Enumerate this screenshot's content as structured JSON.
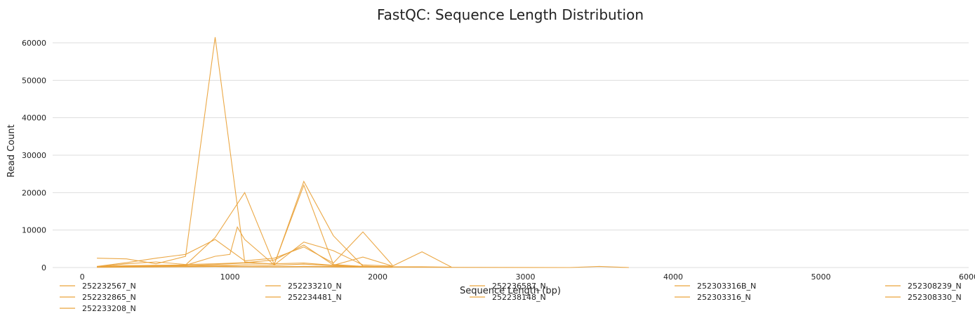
{
  "chart_data": {
    "type": "line",
    "title": "FastQC: Sequence Length Distribution",
    "xlabel": "Sequence Length (bp)",
    "ylabel": "Read Count",
    "xlim": [
      -200,
      6000
    ],
    "ylim": [
      0,
      63000
    ],
    "xticks": [
      0,
      1000,
      2000,
      3000,
      4000,
      5000,
      6000
    ],
    "yticks": [
      0,
      10000,
      20000,
      30000,
      40000,
      50000,
      60000
    ],
    "grid": "horizontal",
    "legend_position": "bottom",
    "color": "#EAA33C",
    "series": [
      {
        "name": "252232567_N",
        "x": [
          100,
          300,
          500,
          700,
          900,
          1100,
          1300,
          1500,
          1700,
          1900,
          2100
        ],
        "y": [
          2500,
          2300,
          1000,
          3000,
          61500,
          1500,
          900,
          22000,
          800,
          300,
          100
        ]
      },
      {
        "name": "252232865_N",
        "x": [
          100,
          300,
          500,
          700,
          900,
          1100,
          1300,
          1500,
          1700,
          1900,
          2100
        ],
        "y": [
          300,
          500,
          600,
          700,
          8000,
          20000,
          800,
          23000,
          8500,
          400,
          100
        ]
      },
      {
        "name": "252233208_N",
        "x": [
          100,
          300,
          500,
          700,
          900,
          1100,
          1300,
          1500,
          1700,
          1900,
          2100
        ],
        "y": [
          300,
          1300,
          2500,
          3500,
          7500,
          1800,
          2500,
          5500,
          1200,
          9500,
          600
        ]
      },
      {
        "name": "252233210_N",
        "x": [
          100,
          300,
          500,
          700,
          900,
          1000,
          1050,
          1100,
          1300,
          1500,
          1700,
          1900,
          2100
        ],
        "y": [
          200,
          400,
          500,
          600,
          3000,
          3500,
          10800,
          7500,
          700,
          6800,
          4500,
          700,
          400
        ]
      },
      {
        "name": "252234481_N",
        "x": [
          100,
          300,
          500,
          700,
          900,
          1100,
          1300,
          1500,
          1700,
          1900,
          2100,
          2300,
          2500
        ],
        "y": [
          200,
          300,
          400,
          500,
          800,
          1200,
          1000,
          1200,
          600,
          2800,
          400,
          4200,
          100
        ]
      },
      {
        "name": "252236587_N",
        "x": [
          100,
          300,
          500,
          700,
          900,
          1100,
          1300,
          1500,
          1700,
          1900,
          2100
        ],
        "y": [
          200,
          1000,
          1500,
          800,
          1000,
          1300,
          2000,
          6000,
          700,
          300,
          100
        ]
      },
      {
        "name": "252238148_N",
        "x": [
          100,
          300,
          500,
          700,
          900,
          1100,
          1300,
          1500,
          1700,
          1900,
          2100,
          2300,
          2500
        ],
        "y": [
          100,
          200,
          300,
          400,
          500,
          700,
          600,
          900,
          500,
          300,
          200,
          200,
          100
        ]
      },
      {
        "name": "252303316B_N",
        "x": [
          100,
          300,
          500,
          700,
          900,
          1100,
          1300,
          1500,
          1700,
          1900,
          2100,
          3300,
          3500,
          3700
        ],
        "y": [
          100,
          200,
          300,
          300,
          400,
          300,
          200,
          300,
          300,
          200,
          100,
          0,
          300,
          0
        ]
      },
      {
        "name": "252303316_N",
        "x": [
          100,
          300,
          500,
          700,
          900,
          1100,
          1300,
          1500,
          1700,
          1900,
          2100
        ],
        "y": [
          100,
          200,
          200,
          300,
          300,
          200,
          200,
          300,
          200,
          100,
          100
        ]
      },
      {
        "name": "252308239_N",
        "x": [
          100,
          300,
          500,
          700,
          900,
          1100,
          1300,
          1500,
          1700,
          1900,
          2100
        ],
        "y": [
          100,
          150,
          200,
          250,
          300,
          250,
          200,
          250,
          200,
          150,
          100
        ]
      },
      {
        "name": "252308330_N",
        "x": [
          100,
          300,
          500,
          700,
          900,
          1100,
          1300,
          1500,
          1700,
          1900,
          2100
        ],
        "y": [
          50,
          100,
          150,
          200,
          250,
          200,
          150,
          200,
          150,
          100,
          50
        ]
      }
    ]
  }
}
